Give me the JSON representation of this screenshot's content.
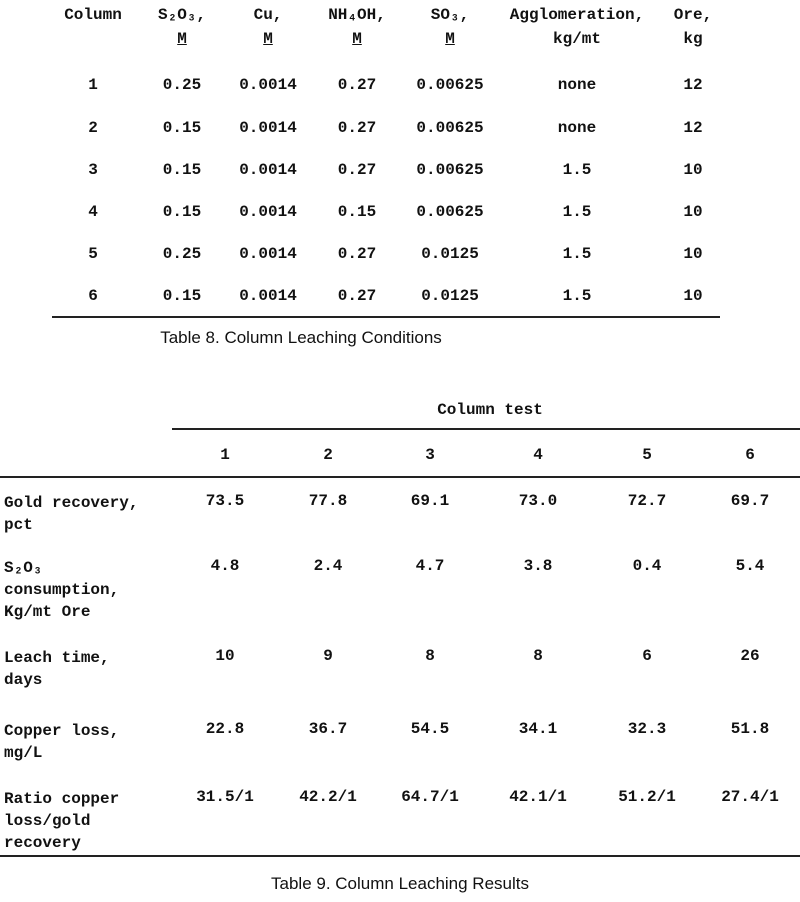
{
  "table8": {
    "headers": [
      {
        "name": "Column"
      },
      {
        "name": "S₂O₃,",
        "unit": "M"
      },
      {
        "name": "Cu,",
        "unit": "M"
      },
      {
        "name": "NH₄OH,",
        "unit": "M"
      },
      {
        "name": "SO₃,",
        "unit": "M"
      },
      {
        "name": "Agglomeration,",
        "unit": "kg/mt"
      },
      {
        "name": "Ore,",
        "unit": "kg"
      }
    ],
    "rows": [
      [
        "1",
        "0.25",
        "0.0014",
        "0.27",
        "0.00625",
        "none",
        "12"
      ],
      [
        "2",
        "0.15",
        "0.0014",
        "0.27",
        "0.00625",
        "none",
        "12"
      ],
      [
        "3",
        "0.15",
        "0.0014",
        "0.27",
        "0.00625",
        "1.5",
        "10"
      ],
      [
        "4",
        "0.15",
        "0.0014",
        "0.15",
        "0.00625",
        "1.5",
        "10"
      ],
      [
        "5",
        "0.25",
        "0.0014",
        "0.27",
        "0.0125",
        "1.5",
        "10"
      ],
      [
        "6",
        "0.15",
        "0.0014",
        "0.27",
        "0.0125",
        "1.5",
        "10"
      ]
    ],
    "caption": "Table 8.  Column Leaching Conditions"
  },
  "table9": {
    "super_header": "Column test",
    "columns": [
      "1",
      "2",
      "3",
      "4",
      "5",
      "6"
    ],
    "rows": [
      {
        "label": [
          "Gold recovery,",
          "pct"
        ],
        "values": [
          "73.5",
          "77.8",
          "69.1",
          "73.0",
          "72.7",
          "69.7"
        ]
      },
      {
        "label": [
          "S₂O₃",
          "consumption,",
          "Kg/mt Ore"
        ],
        "values": [
          "4.8",
          "2.4",
          "4.7",
          "3.8",
          "0.4",
          "5.4"
        ]
      },
      {
        "label": [
          "Leach time,",
          "days"
        ],
        "values": [
          "10",
          "9",
          "8",
          "8",
          "6",
          "26"
        ]
      },
      {
        "label": [
          "Copper loss,",
          "mg/L"
        ],
        "values": [
          "22.8",
          "36.7",
          "54.5",
          "34.1",
          "32.3",
          "51.8"
        ]
      },
      {
        "label": [
          "Ratio copper",
          "loss/gold",
          "recovery"
        ],
        "values": [
          "31.5/1",
          "42.2/1",
          "64.7/1",
          "42.1/1",
          "51.2/1",
          "27.4/1"
        ]
      }
    ],
    "caption": "Table 9.  Column Leaching Results"
  }
}
